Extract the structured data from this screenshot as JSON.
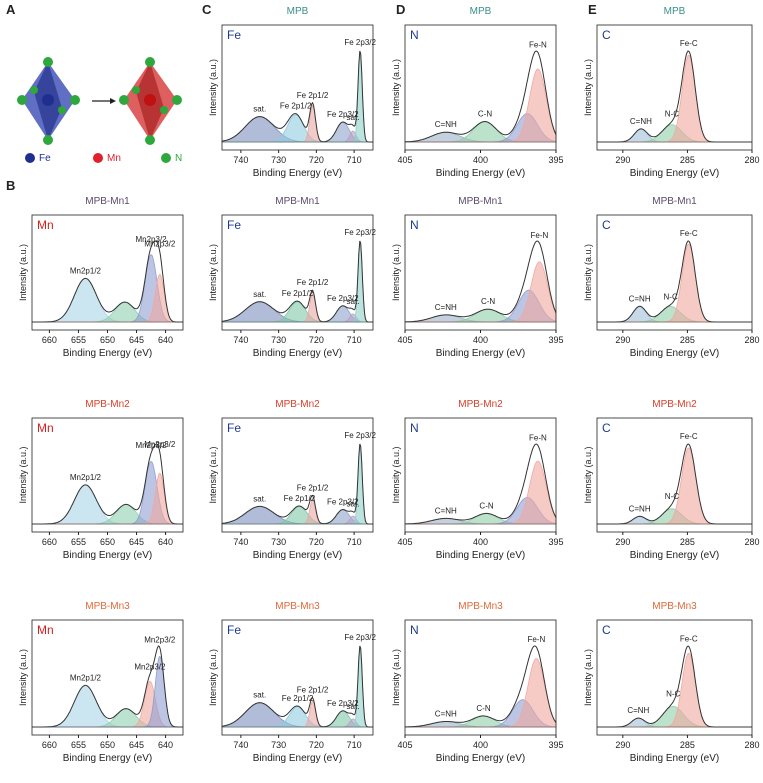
{
  "panel_labels": [
    "A",
    "B",
    "C",
    "D",
    "E"
  ],
  "schematic": {
    "legend": [
      {
        "name": "Fe",
        "color": "#1f2f8f"
      },
      {
        "name": "Mn",
        "color": "#e0202a"
      },
      {
        "name": "N",
        "color": "#2ea83c"
      }
    ]
  },
  "chart_data": [
    {
      "type": "xps",
      "title": "MPB",
      "title_color": "#3a8f8a",
      "element": "Fe",
      "element_color": "#1f3a93",
      "xlabel": "Binding Energy (eV)",
      "ylabel": "Intensity (a.u.)",
      "xlim": [
        745,
        705
      ],
      "xticks": [
        740,
        730,
        720,
        710
      ],
      "peaks": [
        {
          "name": "sat.",
          "center": 735,
          "height": 0.28,
          "fwhm": 9,
          "color": "#7d8fbf"
        },
        {
          "name": "Fe 2p1/2",
          "center": 725.5,
          "height": 0.3,
          "fwhm": 5,
          "color": "#8fcbe0"
        },
        {
          "name": "Fe 2p1/2",
          "center": 721,
          "height": 0.4,
          "fwhm": 1.8,
          "color": "#eaa9a3"
        },
        {
          "name": "Fe 2p3/2",
          "center": 713,
          "height": 0.22,
          "fwhm": 4,
          "color": "#8fa3cc"
        },
        {
          "name": "sat.",
          "center": 710.3,
          "height": 0.12,
          "fwhm": 2,
          "color": "#b9a0c8"
        },
        {
          "name": "Fe 2p3/2",
          "center": 708.4,
          "height": 1.0,
          "fwhm": 1.3,
          "color": "#8fd0c8"
        }
      ]
    },
    {
      "type": "xps",
      "title": "MPB",
      "title_color": "#3a8f8a",
      "element": "N",
      "element_color": "#1f3a93",
      "xlabel": "Binding Energy (eV)",
      "ylabel": "Intensity (a.u.)",
      "xlim": [
        405,
        395
      ],
      "xticks": [
        405,
        400,
        395
      ],
      "peaks": [
        {
          "name": "C=NH",
          "center": 402.3,
          "height": 0.12,
          "fwhm": 2.2,
          "color": "#9fb0c8"
        },
        {
          "name": "C-N",
          "center": 399.7,
          "height": 0.25,
          "fwhm": 1.8,
          "color": "#8fcfa8"
        },
        {
          "name": null,
          "center": 396.9,
          "height": 0.35,
          "fwhm": 1.6,
          "color": "#8f9fd0"
        },
        {
          "name": "Fe-N",
          "center": 396.2,
          "height": 0.9,
          "fwhm": 1.3,
          "color": "#f0a8a0"
        }
      ]
    },
    {
      "type": "xps",
      "title": "MPB",
      "title_color": "#3a8f8a",
      "element": "C",
      "element_color": "#1f3a93",
      "xlabel": "Binding Energy (eV)",
      "ylabel": "Intensity (a.u.)",
      "xlim": [
        292,
        280
      ],
      "xticks": [
        290,
        285,
        280
      ],
      "peaks": [
        {
          "name": "C=NH",
          "center": 288.6,
          "height": 0.15,
          "fwhm": 1.2,
          "color": "#9fbfd8"
        },
        {
          "name": "N-C",
          "center": 286.2,
          "height": 0.2,
          "fwhm": 1.8,
          "color": "#8fcfa8"
        },
        {
          "name": "Fe-C",
          "center": 284.9,
          "height": 1.0,
          "fwhm": 1.2,
          "color": "#f0a8a0"
        }
      ]
    },
    {
      "type": "xps",
      "title": "MPB-Mn1",
      "title_color": "#5a4a6a",
      "element": "Mn",
      "element_color": "#d32020",
      "xlabel": "Binding Energy (eV)",
      "ylabel": "Intensity (a.u.)",
      "xlim": [
        663,
        637
      ],
      "xticks": [
        660,
        655,
        650,
        645,
        640
      ],
      "peaks": [
        {
          "name": "Mn2p1/2",
          "center": 653.8,
          "height": 0.55,
          "fwhm": 4.5,
          "color": "#a9d3e8"
        },
        {
          "name": null,
          "center": 647,
          "height": 0.25,
          "fwhm": 4,
          "color": "#8fd0b0"
        },
        {
          "name": "Mn2p3/2",
          "center": 642.5,
          "height": 0.85,
          "fwhm": 2.4,
          "color": "#8f9fd0"
        },
        {
          "name": "Mn2p3/2",
          "center": 641,
          "height": 0.6,
          "fwhm": 1.8,
          "color": "#f0a8a0"
        }
      ]
    },
    {
      "type": "xps",
      "title": "MPB-Mn1",
      "title_color": "#5a4a6a",
      "element": "Fe",
      "element_color": "#1f3a93",
      "xlabel": "Binding Energy (eV)",
      "ylabel": "Intensity (a.u.)",
      "xlim": [
        745,
        705
      ],
      "xticks": [
        740,
        730,
        720,
        710
      ],
      "peaks": [
        {
          "name": "sat.",
          "center": 735,
          "height": 0.25,
          "fwhm": 9,
          "color": "#7d8fbf"
        },
        {
          "name": "Fe 2p1/2",
          "center": 725,
          "height": 0.25,
          "fwhm": 5,
          "color": "#7ec8a8"
        },
        {
          "name": "Fe 2p1/2",
          "center": 721,
          "height": 0.35,
          "fwhm": 1.8,
          "color": "#eaa9a3"
        },
        {
          "name": "Fe 2p3/2",
          "center": 713,
          "height": 0.2,
          "fwhm": 4,
          "color": "#8fa3cc"
        },
        {
          "name": "sat.",
          "center": 710.3,
          "height": 0.1,
          "fwhm": 2,
          "color": "#b9a0c8"
        },
        {
          "name": "Fe 2p3/2",
          "center": 708.4,
          "height": 1.0,
          "fwhm": 1.3,
          "color": "#8fd0c8"
        }
      ]
    },
    {
      "type": "xps",
      "title": "MPB-Mn1",
      "title_color": "#5a4a6a",
      "element": "N",
      "element_color": "#1f3a93",
      "xlabel": "Binding Energy (eV)",
      "ylabel": "Intensity (a.u.)",
      "xlim": [
        405,
        395
      ],
      "xticks": [
        405,
        400,
        395
      ],
      "peaks": [
        {
          "name": "C=NH",
          "center": 402.3,
          "height": 0.1,
          "fwhm": 2.2,
          "color": "#9fb0c8"
        },
        {
          "name": "C-N",
          "center": 399.5,
          "height": 0.18,
          "fwhm": 2,
          "color": "#8fcfa8"
        },
        {
          "name": null,
          "center": 396.8,
          "height": 0.45,
          "fwhm": 1.6,
          "color": "#8f9fd0"
        },
        {
          "name": "Fe-N",
          "center": 396.1,
          "height": 0.85,
          "fwhm": 1.3,
          "color": "#f0a8a0"
        }
      ]
    },
    {
      "type": "xps",
      "title": "MPB-Mn1",
      "title_color": "#5a4a6a",
      "element": "C",
      "element_color": "#1f3a93",
      "xlabel": "Binding Energy (eV)",
      "ylabel": "Intensity (a.u.)",
      "xlim": [
        292,
        280
      ],
      "xticks": [
        290,
        285,
        280
      ],
      "peaks": [
        {
          "name": "C=NH",
          "center": 288.7,
          "height": 0.2,
          "fwhm": 1.2,
          "color": "#9fbfd8"
        },
        {
          "name": "N-C",
          "center": 286.3,
          "height": 0.2,
          "fwhm": 1.8,
          "color": "#8fcfa8"
        },
        {
          "name": "Fe-C",
          "center": 284.9,
          "height": 1.0,
          "fwhm": 1.2,
          "color": "#f0a8a0"
        }
      ]
    },
    {
      "type": "xps",
      "title": "MPB-Mn2",
      "title_color": "#d9402a",
      "element": "Mn",
      "element_color": "#d32020",
      "xlabel": "Binding Energy (eV)",
      "ylabel": "Intensity (a.u.)",
      "xlim": [
        663,
        637
      ],
      "xticks": [
        660,
        655,
        650,
        645,
        640
      ],
      "peaks": [
        {
          "name": "Mn2p1/2",
          "center": 653.8,
          "height": 0.5,
          "fwhm": 4.5,
          "color": "#a9d3e8"
        },
        {
          "name": null,
          "center": 646.8,
          "height": 0.25,
          "fwhm": 4,
          "color": "#8fd0b0"
        },
        {
          "name": "Mn2p3/2",
          "center": 642.5,
          "height": 0.8,
          "fwhm": 2.4,
          "color": "#8f9fd0"
        },
        {
          "name": "Mn2p3/2",
          "center": 641,
          "height": 0.65,
          "fwhm": 1.8,
          "color": "#f0a8a0"
        }
      ]
    },
    {
      "type": "xps",
      "title": "MPB-Mn2",
      "title_color": "#d9402a",
      "element": "Fe",
      "element_color": "#1f3a93",
      "xlabel": "Binding Energy (eV)",
      "ylabel": "Intensity (a.u.)",
      "xlim": [
        745,
        705
      ],
      "xticks": [
        740,
        730,
        720,
        710
      ],
      "peaks": [
        {
          "name": "sat.",
          "center": 735,
          "height": 0.22,
          "fwhm": 9,
          "color": "#7d8fbf"
        },
        {
          "name": "Fe 2p1/2",
          "center": 724.5,
          "height": 0.22,
          "fwhm": 5,
          "color": "#7ec8a8"
        },
        {
          "name": "Fe 2p1/2",
          "center": 721,
          "height": 0.3,
          "fwhm": 1.8,
          "color": "#eaa9a3"
        },
        {
          "name": "Fe 2p3/2",
          "center": 713,
          "height": 0.18,
          "fwhm": 4,
          "color": "#8fa3cc"
        },
        {
          "name": "sat.",
          "center": 710.3,
          "height": 0.1,
          "fwhm": 2,
          "color": "#b9a0c8"
        },
        {
          "name": "Fe 2p3/2",
          "center": 708.4,
          "height": 1.0,
          "fwhm": 1.3,
          "color": "#8fd0c8"
        }
      ]
    },
    {
      "type": "xps",
      "title": "MPB-Mn2",
      "title_color": "#d9402a",
      "element": "N",
      "element_color": "#1f3a93",
      "xlabel": "Binding Energy (eV)",
      "ylabel": "Intensity (a.u.)",
      "xlim": [
        405,
        395
      ],
      "xticks": [
        405,
        400,
        395
      ],
      "peaks": [
        {
          "name": "C=NH",
          "center": 402.3,
          "height": 0.08,
          "fwhm": 2.2,
          "color": "#9fb0c8"
        },
        {
          "name": "C-N",
          "center": 399.6,
          "height": 0.15,
          "fwhm": 1.8,
          "color": "#8fcfa8"
        },
        {
          "name": null,
          "center": 396.9,
          "height": 0.38,
          "fwhm": 1.6,
          "color": "#8f9fd0"
        },
        {
          "name": "Fe-N",
          "center": 396.2,
          "height": 0.9,
          "fwhm": 1.3,
          "color": "#f0a8a0"
        }
      ]
    },
    {
      "type": "xps",
      "title": "MPB-Mn2",
      "title_color": "#d9402a",
      "element": "C",
      "element_color": "#1f3a93",
      "xlabel": "Binding Energy (eV)",
      "ylabel": "Intensity (a.u.)",
      "xlim": [
        292,
        280
      ],
      "xticks": [
        290,
        285,
        280
      ],
      "peaks": [
        {
          "name": "C=NH",
          "center": 288.7,
          "height": 0.1,
          "fwhm": 1.2,
          "color": "#9fbfd8"
        },
        {
          "name": "N-C",
          "center": 286.2,
          "height": 0.2,
          "fwhm": 1.8,
          "color": "#8fcfa8"
        },
        {
          "name": "Fe-C",
          "center": 284.9,
          "height": 1.0,
          "fwhm": 1.3,
          "color": "#f0a8a0"
        }
      ]
    },
    {
      "type": "xps",
      "title": "MPB-Mn3",
      "title_color": "#e06a3a",
      "element": "Mn",
      "element_color": "#d32020",
      "xlabel": "Binding Energy (eV)",
      "ylabel": "Intensity (a.u.)",
      "xlim": [
        663,
        637
      ],
      "xticks": [
        660,
        655,
        650,
        645,
        640
      ],
      "peaks": [
        {
          "name": "Mn2p1/2",
          "center": 653.8,
          "height": 0.5,
          "fwhm": 4.5,
          "color": "#a9d3e8"
        },
        {
          "name": null,
          "center": 646.8,
          "height": 0.22,
          "fwhm": 4,
          "color": "#8fd0b0"
        },
        {
          "name": "Mn2p3/2",
          "center": 642.7,
          "height": 0.55,
          "fwhm": 2.2,
          "color": "#f0a8a0"
        },
        {
          "name": "Mn2p3/2",
          "center": 641,
          "height": 0.85,
          "fwhm": 1.8,
          "color": "#8f9fd0"
        }
      ]
    },
    {
      "type": "xps",
      "title": "MPB-Mn3",
      "title_color": "#e06a3a",
      "element": "Fe",
      "element_color": "#1f3a93",
      "xlabel": "Binding Energy (eV)",
      "ylabel": "Intensity (a.u.)",
      "xlim": [
        745,
        705
      ],
      "xticks": [
        740,
        730,
        720,
        710
      ],
      "peaks": [
        {
          "name": "sat.",
          "center": 735,
          "height": 0.3,
          "fwhm": 9,
          "color": "#7d8fbf"
        },
        {
          "name": "Fe 2p1/2",
          "center": 725,
          "height": 0.25,
          "fwhm": 5,
          "color": "#8fcbe0"
        },
        {
          "name": "Fe 2p1/2",
          "center": 721,
          "height": 0.32,
          "fwhm": 1.8,
          "color": "#eaa9a3"
        },
        {
          "name": "Fe 2p3/2",
          "center": 713,
          "height": 0.2,
          "fwhm": 4,
          "color": "#7ec8a8"
        },
        {
          "name": "sat.",
          "center": 710.3,
          "height": 0.1,
          "fwhm": 2,
          "color": "#b9a0c8"
        },
        {
          "name": "Fe 2p3/2",
          "center": 708.4,
          "height": 1.0,
          "fwhm": 1.3,
          "color": "#8fd0c8"
        }
      ]
    },
    {
      "type": "xps",
      "title": "MPB-Mn3",
      "title_color": "#e06a3a",
      "element": "N",
      "element_color": "#1f3a93",
      "xlabel": "Binding Energy (eV)",
      "ylabel": "Intensity (a.u.)",
      "xlim": [
        405,
        395
      ],
      "xticks": [
        405,
        400,
        395
      ],
      "peaks": [
        {
          "name": "C=NH",
          "center": 402.3,
          "height": 0.07,
          "fwhm": 2.2,
          "color": "#9fb0c8"
        },
        {
          "name": "C-N",
          "center": 399.8,
          "height": 0.14,
          "fwhm": 1.8,
          "color": "#8fcfa8"
        },
        {
          "name": null,
          "center": 397.2,
          "height": 0.35,
          "fwhm": 1.6,
          "color": "#8f9fd0"
        },
        {
          "name": "Fe-N",
          "center": 396.3,
          "height": 0.88,
          "fwhm": 1.3,
          "color": "#f0a8a0"
        }
      ]
    },
    {
      "type": "xps",
      "title": "MPB-Mn3",
      "title_color": "#e06a3a",
      "element": "C",
      "element_color": "#1f3a93",
      "xlabel": "Binding Energy (eV)",
      "ylabel": "Intensity (a.u.)",
      "xlim": [
        292,
        280
      ],
      "xticks": [
        290,
        285,
        280
      ],
      "peaks": [
        {
          "name": "C=NH",
          "center": 288.8,
          "height": 0.12,
          "fwhm": 1.2,
          "color": "#9fbfd8"
        },
        {
          "name": "N-C",
          "center": 286.1,
          "height": 0.28,
          "fwhm": 1.9,
          "color": "#8fcfa8"
        },
        {
          "name": "Fe-C",
          "center": 284.9,
          "height": 1.0,
          "fwhm": 1.2,
          "color": "#f0a8a0"
        }
      ]
    }
  ]
}
